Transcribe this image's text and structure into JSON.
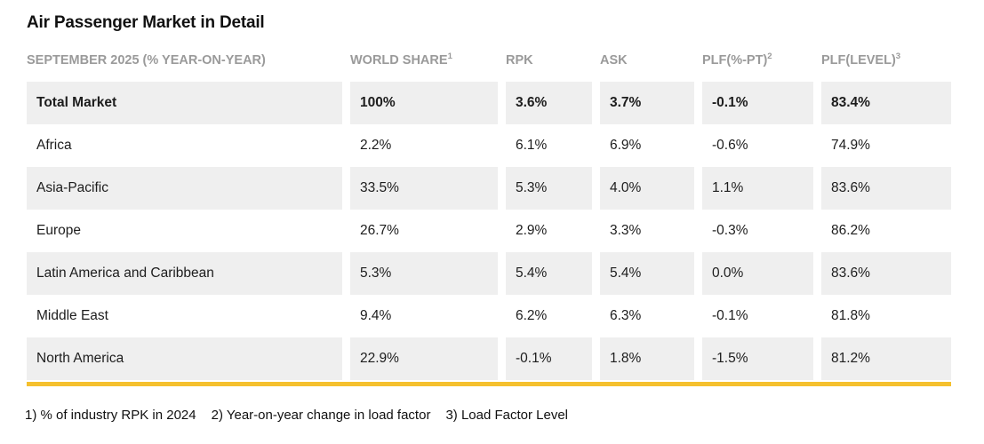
{
  "page_title": "Air Passenger Market in Detail",
  "chart_data": {
    "type": "table",
    "title": "Air Passenger Market in Detail",
    "period_header": "SEPTEMBER 2025 (% YEAR-ON-YEAR)",
    "columns": [
      {
        "label": "WORLD SHARE",
        "sup": "1"
      },
      {
        "label": "RPK",
        "sup": ""
      },
      {
        "label": "ASK",
        "sup": ""
      },
      {
        "label": "PLF(%-PT)",
        "sup": "2"
      },
      {
        "label": "PLF(LEVEL)",
        "sup": "3"
      }
    ],
    "rows": [
      {
        "region": "Total Market",
        "world_share": "100%",
        "rpk": "3.6%",
        "ask": "3.7%",
        "plf_pt": "-0.1%",
        "plf_level": "83.4%",
        "emphasis": true
      },
      {
        "region": "Africa",
        "world_share": "2.2%",
        "rpk": "6.1%",
        "ask": "6.9%",
        "plf_pt": "-0.6%",
        "plf_level": "74.9%",
        "emphasis": false
      },
      {
        "region": "Asia-Pacific",
        "world_share": "33.5%",
        "rpk": "5.3%",
        "ask": "4.0%",
        "plf_pt": "1.1%",
        "plf_level": "83.6%",
        "emphasis": false
      },
      {
        "region": "Europe",
        "world_share": "26.7%",
        "rpk": "2.9%",
        "ask": "3.3%",
        "plf_pt": "-0.3%",
        "plf_level": "86.2%",
        "emphasis": false
      },
      {
        "region": "Latin America and Caribbean",
        "world_share": "5.3%",
        "rpk": "5.4%",
        "ask": "5.4%",
        "plf_pt": "0.0%",
        "plf_level": "83.6%",
        "emphasis": false
      },
      {
        "region": "Middle East",
        "world_share": "9.4%",
        "rpk": "6.2%",
        "ask": "6.3%",
        "plf_pt": "-0.1%",
        "plf_level": "81.8%",
        "emphasis": false
      },
      {
        "region": "North America",
        "world_share": "22.9%",
        "rpk": "-0.1%",
        "ask": "1.8%",
        "plf_pt": "-1.5%",
        "plf_level": "81.2%",
        "emphasis": false
      }
    ]
  },
  "footnotes": {
    "note1": "1) % of industry RPK in 2024",
    "note2": "2) Year-on-year change in load factor",
    "note3": "3) Load Factor Level"
  },
  "colors": {
    "accent_bar": "#f5c02e",
    "row_shade": "#efefef",
    "header_text": "#9a9a9a",
    "body_text": "#1d1d1d"
  }
}
